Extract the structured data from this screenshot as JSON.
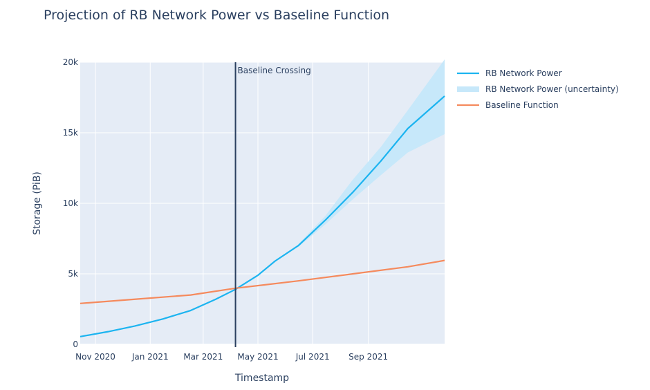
{
  "chart_data": {
    "type": "line",
    "title": "Projection of RB Network Power vs Baseline Function",
    "xlabel": "Timestamp",
    "ylabel": "Storage (PiB)",
    "xlim": [
      "2020-10-15",
      "2021-11-25"
    ],
    "ylim": [
      0,
      20000
    ],
    "x_tick_labels": [
      "Nov 2020",
      "Jan 2021",
      "Mar 2021",
      "May 2021",
      "Jul 2021",
      "Sep 2021"
    ],
    "x_tick_dates": [
      "2020-11-01",
      "2021-01-01",
      "2021-03-01",
      "2021-05-01",
      "2021-07-01",
      "2021-09-01"
    ],
    "y_tick_labels": [
      "0",
      "5k",
      "10k",
      "15k",
      "20k"
    ],
    "y_tick_values": [
      0,
      5000,
      10000,
      15000,
      20000
    ],
    "grid": true,
    "legend_position": "top-right",
    "series": [
      {
        "name": "RB Network Power",
        "color": "#1cb4f0",
        "x": [
          "2020-10-15",
          "2020-11-15",
          "2020-12-15",
          "2021-01-15",
          "2021-02-15",
          "2021-03-15",
          "2021-04-06",
          "2021-05-01",
          "2021-05-20",
          "2021-06-15",
          "2021-07-15",
          "2021-08-15",
          "2021-09-15",
          "2021-10-15",
          "2021-11-25"
        ],
        "y": [
          550,
          900,
          1300,
          1800,
          2400,
          3200,
          3900,
          4900,
          5900,
          7000,
          8800,
          10800,
          13000,
          15300,
          17600
        ]
      },
      {
        "name": "Baseline Function",
        "color": "#f58a5d",
        "x": [
          "2020-10-15",
          "2020-12-15",
          "2021-02-15",
          "2021-04-06",
          "2021-06-15",
          "2021-08-15",
          "2021-10-15",
          "2021-11-25"
        ],
        "y": [
          2900,
          3200,
          3500,
          3980,
          4500,
          5000,
          5500,
          5950
        ]
      }
    ],
    "band": {
      "name": "RB Network Power (uncertainty)",
      "color": "#c7e8fa",
      "x": [
        "2021-06-15",
        "2021-07-15",
        "2021-08-15",
        "2021-09-15",
        "2021-10-15",
        "2021-11-25"
      ],
      "upper": [
        7100,
        9100,
        11700,
        14000,
        16600,
        20200
      ],
      "lower": [
        6900,
        8500,
        10300,
        12000,
        13600,
        14900
      ]
    },
    "vline": {
      "x": "2021-04-06",
      "label": "Baseline Crossing",
      "color": "#2a3f5f"
    }
  }
}
